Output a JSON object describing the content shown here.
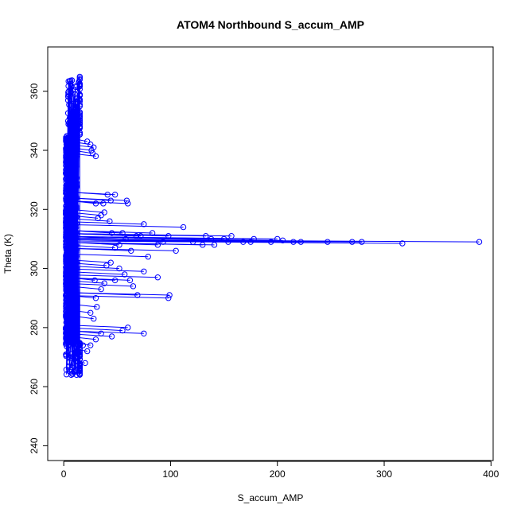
{
  "chart_data": {
    "type": "scatter",
    "title": "ATOM4 Northbound S_accum_AMP",
    "xlabel": "S_accum_AMP",
    "ylabel": "Theta (K)",
    "xlim": [
      -15,
      402
    ],
    "ylim": [
      235,
      375
    ],
    "xticks": [
      0,
      100,
      200,
      300,
      400
    ],
    "yticks": [
      240,
      260,
      280,
      300,
      320,
      340,
      360
    ],
    "grid": false,
    "point_style": "open circles joined by lines (type b)",
    "series": [
      {
        "color": "#0000ff",
        "dense_core": {
          "x_range": [
            0,
            12
          ],
          "y_range": [
            264,
            365
          ]
        },
        "points": [
          [
            389,
            309
          ],
          [
            317,
            308.5
          ],
          [
            279,
            309
          ],
          [
            270,
            309
          ],
          [
            247,
            309
          ],
          [
            222,
            309
          ],
          [
            215,
            309
          ],
          [
            205,
            309.5
          ],
          [
            200,
            310
          ],
          [
            194,
            309
          ],
          [
            178,
            310
          ],
          [
            175,
            309
          ],
          [
            168,
            309
          ],
          [
            157,
            311
          ],
          [
            154,
            309
          ],
          [
            150,
            310
          ],
          [
            141,
            308
          ],
          [
            138,
            310
          ],
          [
            133,
            311
          ],
          [
            130,
            308
          ],
          [
            121,
            309
          ],
          [
            112,
            314
          ],
          [
            105,
            306
          ],
          [
            98,
            311
          ],
          [
            93,
            309
          ],
          [
            88,
            308
          ],
          [
            83,
            312
          ],
          [
            79,
            304
          ],
          [
            75,
            315
          ],
          [
            72,
            311
          ],
          [
            68,
            311
          ],
          [
            63,
            306
          ],
          [
            58,
            310
          ],
          [
            55,
            312
          ],
          [
            52,
            308
          ],
          [
            48,
            307
          ],
          [
            45,
            312
          ],
          [
            43,
            316
          ],
          [
            38,
            319
          ],
          [
            35,
            318
          ],
          [
            32,
            317
          ],
          [
            59,
            323
          ],
          [
            60,
            322
          ],
          [
            44,
            323
          ],
          [
            48,
            325
          ],
          [
            41,
            325
          ],
          [
            37,
            322
          ],
          [
            30,
            322
          ],
          [
            28,
            341
          ],
          [
            27,
            339
          ],
          [
            30,
            338
          ],
          [
            26,
            340
          ],
          [
            25,
            342
          ],
          [
            22,
            343
          ],
          [
            88,
            297
          ],
          [
            99,
            291
          ],
          [
            98,
            290
          ],
          [
            75,
            299
          ],
          [
            69,
            291
          ],
          [
            62,
            296
          ],
          [
            65,
            294
          ],
          [
            57,
            298
          ],
          [
            52,
            300
          ],
          [
            48,
            296
          ],
          [
            44,
            302
          ],
          [
            40,
            301
          ],
          [
            38,
            295
          ],
          [
            35,
            293
          ],
          [
            29,
            296
          ],
          [
            30,
            290
          ],
          [
            25,
            285
          ],
          [
            31,
            287
          ],
          [
            28,
            283
          ],
          [
            75,
            278
          ],
          [
            60,
            280
          ],
          [
            55,
            279
          ],
          [
            45,
            277
          ],
          [
            35,
            278
          ],
          [
            30,
            276
          ],
          [
            25,
            274
          ],
          [
            22,
            272
          ],
          [
            20,
            268
          ],
          [
            18,
            274
          ],
          [
            15,
            266
          ],
          [
            12,
            264
          ],
          [
            10,
            265
          ],
          [
            7,
            264
          ],
          [
            5,
            267
          ]
        ]
      }
    ]
  }
}
